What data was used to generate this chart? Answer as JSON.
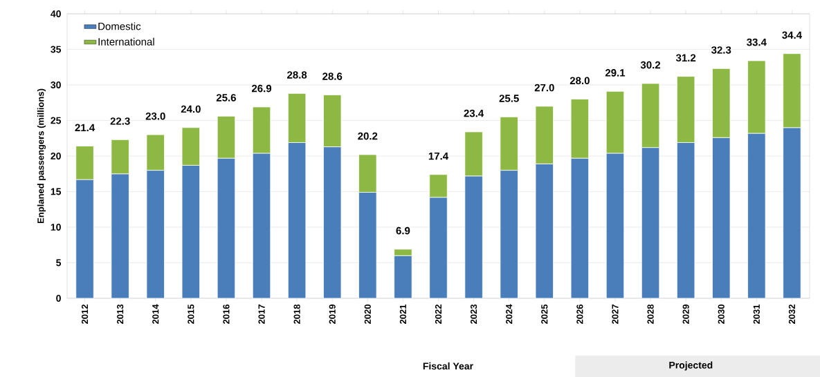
{
  "chart_data": {
    "type": "bar",
    "stacked": true,
    "ylabel": "Enplaned passengers (millions)",
    "xlabel": "Fiscal Year",
    "categories": [
      "2012",
      "2013",
      "2014",
      "2015",
      "2016",
      "2017",
      "2018",
      "2019",
      "2020",
      "2021",
      "2022",
      "2023",
      "2024",
      "2025",
      "2026",
      "2027",
      "2028",
      "2029",
      "2030",
      "2031",
      "2032"
    ],
    "series": [
      {
        "name": "Domestic",
        "color": "#4a7ebb",
        "values": [
          16.7,
          17.5,
          18.0,
          18.7,
          19.7,
          20.4,
          21.9,
          21.3,
          14.9,
          6.0,
          14.2,
          17.2,
          18.0,
          18.9,
          19.7,
          20.4,
          21.2,
          21.9,
          22.6,
          23.2,
          24.0
        ]
      },
      {
        "name": "International",
        "color": "#8db843",
        "values": [
          4.7,
          4.8,
          5.0,
          5.3,
          5.9,
          6.5,
          6.9,
          7.3,
          5.3,
          0.9,
          3.2,
          6.2,
          7.5,
          8.1,
          8.3,
          8.7,
          9.0,
          9.3,
          9.7,
          10.2,
          10.4
        ]
      }
    ],
    "totals": [
      "21.4",
      "22.3",
      "23.0",
      "24.0",
      "25.6",
      "26.9",
      "28.8",
      "28.6",
      "20.2",
      "6.9",
      "17.4",
      "23.4",
      "25.5",
      "27.0",
      "28.0",
      "29.1",
      "30.2",
      "31.2",
      "32.3",
      "33.4",
      "34.4"
    ],
    "annotations": [
      "Projected"
    ],
    "ylim": [
      0,
      40
    ],
    "yticks": [
      0,
      5,
      10,
      15,
      20,
      25,
      30,
      35,
      40
    ],
    "grid": "y",
    "legend": "top left"
  }
}
